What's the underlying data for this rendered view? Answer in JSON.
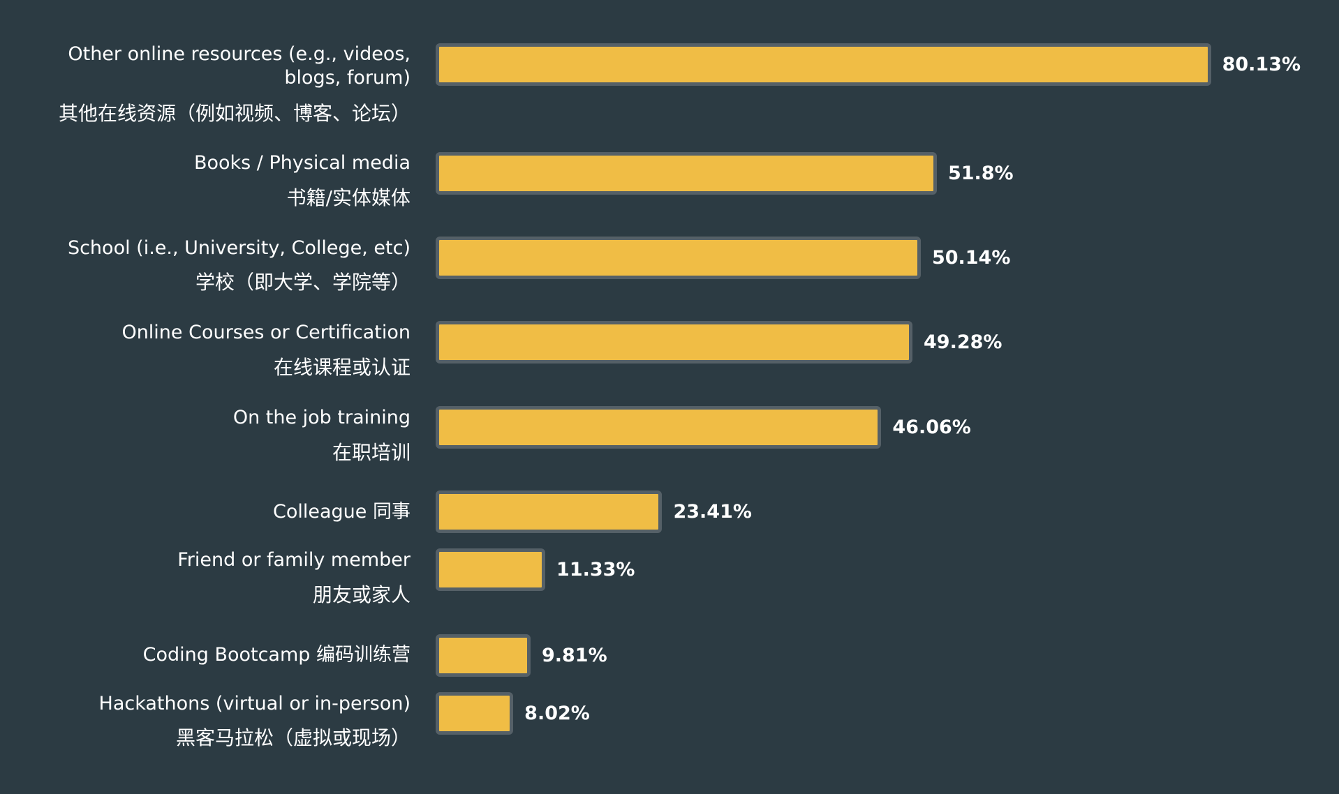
{
  "chart_data": {
    "type": "bar",
    "orientation": "horizontal",
    "title": "",
    "xlabel": "",
    "ylabel": "",
    "xlim": [
      0,
      100
    ],
    "grid": false,
    "value_suffix": "%",
    "colors": {
      "background": "#2c3b43",
      "bar_fill": "#f0bd45",
      "bar_border": "#556067",
      "text": "#ffffff"
    },
    "categories": [
      {
        "en": "Other online resources (e.g., videos, blogs, forum)",
        "zh": "其他在线资源（例如视频、博客、论坛）"
      },
      {
        "en": "Books / Physical media",
        "zh": "书籍/实体媒体"
      },
      {
        "en": "School (i.e., University, College, etc)",
        "zh": "学校（即大学、学院等）"
      },
      {
        "en": "Online Courses or Certification",
        "zh": "在线课程或认证"
      },
      {
        "en": "On the job training",
        "zh": "在职培训"
      },
      {
        "en": "Colleague 同事",
        "zh": ""
      },
      {
        "en": "Friend or family member",
        "zh": "朋友或家人"
      },
      {
        "en": "Coding Bootcamp 编码训练营",
        "zh": ""
      },
      {
        "en": "Hackathons (virtual or in-person)",
        "zh": "黑客马拉松（虚拟或现场）"
      }
    ],
    "values": [
      80.13,
      51.8,
      50.14,
      49.28,
      46.06,
      23.41,
      11.33,
      9.81,
      8.02
    ],
    "value_labels": [
      "80.13%",
      "51.8%",
      "50.14%",
      "49.28%",
      "46.06%",
      "23.41%",
      "11.33%",
      "9.81%",
      "8.02%"
    ]
  }
}
